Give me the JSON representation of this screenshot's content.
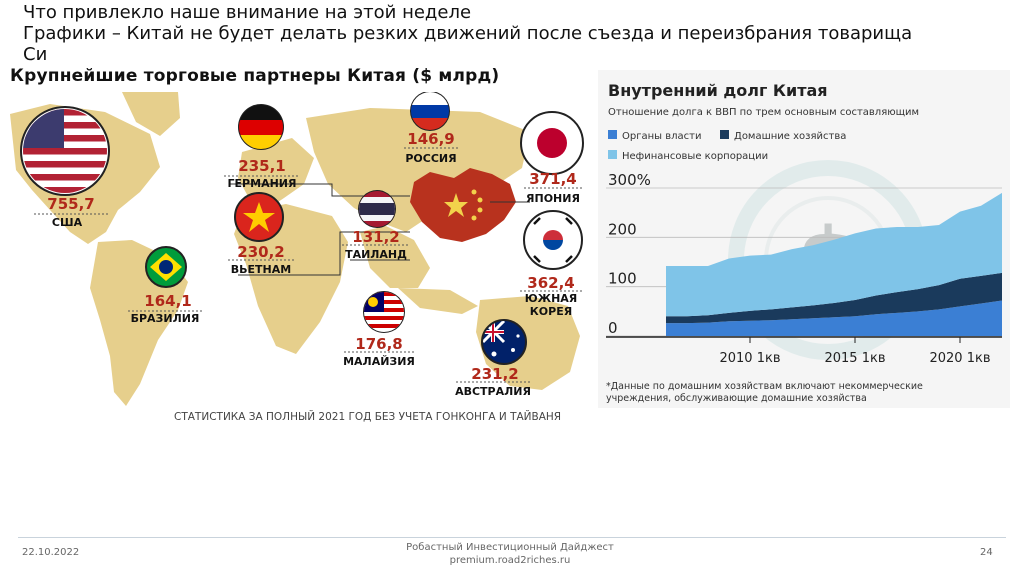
{
  "header": {
    "line1": "Что привлекло наше внимание на этой неделе",
    "line2": "Графики – Китай не будет делать резких движений после съезда и переизбрания товарища",
    "line3": "Си"
  },
  "map": {
    "title": "Крупнейшие торговые партнеры Китая  ($ млрд)",
    "note": "СТАТИСТИКА ЗА ПОЛНЫЙ 2021 ГОД БЕЗ УЧЕТА ГОНКОНГА И ТАЙВАНЯ",
    "partners": [
      {
        "value": "755,7",
        "name": "США",
        "flag": "usa-flag-icon"
      },
      {
        "value": "235,1",
        "name": "ГЕРМАНИЯ",
        "flag": "germany-flag-icon"
      },
      {
        "value": "146,9",
        "name": "РОССИЯ",
        "flag": "russia-flag-icon"
      },
      {
        "value": "371,4",
        "name": "ЯПОНИЯ",
        "flag": "japan-flag-icon"
      },
      {
        "value": "230,2",
        "name": "ВЬЕТНАМ",
        "flag": "vietnam-flag-icon"
      },
      {
        "value": "131,2",
        "name": "ТАИЛАНД",
        "flag": "thailand-flag-icon"
      },
      {
        "value": "362,4",
        "name": "ЮЖНАЯ",
        "name2": "КОРЕЯ",
        "flag": "south-korea-flag-icon"
      },
      {
        "value": "164,1",
        "name": "БРАЗИЛИЯ",
        "flag": "brazil-flag-icon"
      },
      {
        "value": "176,8",
        "name": "МАЛАЙЗИЯ",
        "flag": "malaysia-flag-icon"
      },
      {
        "value": "231,2",
        "name": "АВСТРАЛИЯ",
        "flag": "australia-flag-icon"
      }
    ]
  },
  "chart_data": {
    "type": "area",
    "stacked": true,
    "title": "Внутренний долг Китая",
    "subtitle": "Отношение долга к ВВП по трем основным составляющим",
    "x": [
      2006,
      2007,
      2008,
      2009,
      2010,
      2011,
      2012,
      2013,
      2014,
      2015,
      2016,
      2017,
      2018,
      2019,
      2020,
      2021,
      2022
    ],
    "xtick_labels": [
      "2010 1кв",
      "2015 1кв",
      "2020 1кв"
    ],
    "xtick_positions": [
      2010,
      2015,
      2020
    ],
    "ylim": [
      0,
      300
    ],
    "ytick_labels": [
      "300%",
      "200",
      "100",
      "0"
    ],
    "series": [
      {
        "name": "Органы власти",
        "color": "#3b7fd4",
        "values": [
          26,
          26,
          27,
          30,
          31,
          32,
          34,
          36,
          38,
          40,
          44,
          47,
          50,
          54,
          60,
          66,
          72
        ]
      },
      {
        "name": "Домашние хозяйства",
        "color": "#1a3a5c",
        "values": [
          14,
          14,
          15,
          17,
          20,
          22,
          24,
          26,
          29,
          33,
          38,
          42,
          45,
          49,
          56,
          56,
          56
        ]
      },
      {
        "name": "Нефинансовые корпорации",
        "color": "#7fc4e8",
        "values": [
          102,
          102,
          100,
          110,
          112,
          111,
          118,
          122,
          128,
          135,
          136,
          132,
          126,
          122,
          136,
          142,
          162
        ]
      }
    ],
    "legend_position": "top-left",
    "footnote_line1": "*Данные по домашним хозяйствам включают некоммерческие",
    "footnote_line2": "учреждения, обслуживающие домашние хозяйства"
  },
  "footer": {
    "date": "22.10.2022",
    "center_line1": "Робастный Инвестиционный Дайджест",
    "center_line2": "premium.road2riches.ru",
    "page": "24"
  }
}
